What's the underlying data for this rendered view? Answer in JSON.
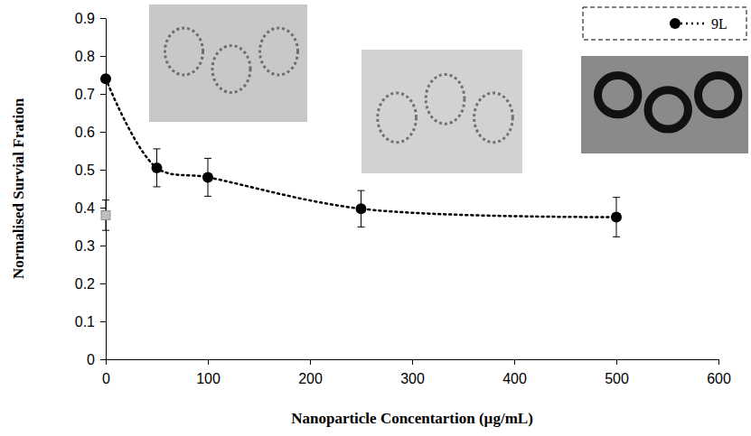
{
  "chart_data": {
    "type": "line",
    "x_label": "Nanoparticle Concentartion (µg/mL)",
    "y_label": "Normalised Survial Fration",
    "x": [
      0,
      50,
      100,
      250,
      500
    ],
    "series": [
      {
        "name": "9L",
        "color": "#000000",
        "marker": "circle",
        "line_style": "dotted",
        "values": [
          0.74,
          0.505,
          0.48,
          0.397,
          0.375
        ],
        "errors": [
          null,
          0.05,
          0.05,
          0.048,
          0.052
        ]
      },
      {
        "type": "scatter",
        "color": "#bfbfbf",
        "marker": "square",
        "x": [
          0
        ],
        "values": [
          0.38
        ],
        "errors": [
          0.04
        ]
      }
    ],
    "xlim": [
      0,
      600
    ],
    "xticks": [
      0,
      100,
      200,
      300,
      400,
      500,
      600
    ],
    "ylim": [
      0,
      0.9
    ],
    "yticks": [
      0,
      0.1,
      0.2,
      0.3,
      0.4,
      0.5,
      0.6,
      0.7,
      0.8,
      0.9
    ],
    "legend": "top-right"
  }
}
